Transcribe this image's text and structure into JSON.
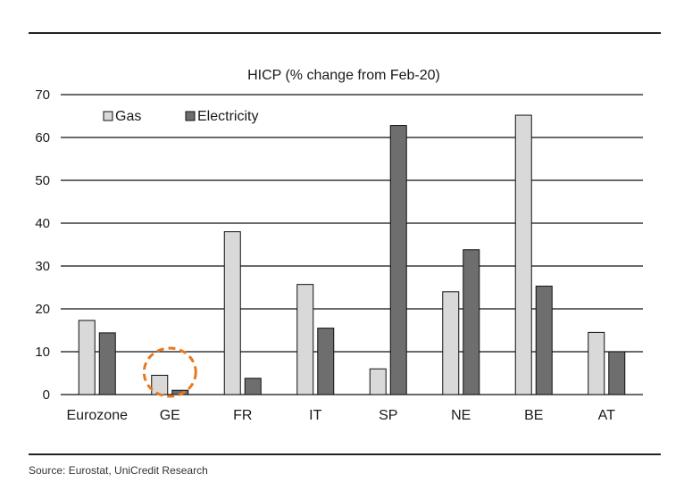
{
  "source": "Source: Eurostat, UniCredit Research",
  "chart_data": {
    "type": "bar",
    "title": "HICP (% change from Feb-20)",
    "xlabel": "",
    "ylabel": "",
    "ylim": [
      0,
      70
    ],
    "yticks": [
      0,
      10,
      20,
      30,
      40,
      50,
      60,
      70
    ],
    "grid": true,
    "legend_position": "top-left",
    "categories": [
      "Eurozone",
      "GE",
      "FR",
      "IT",
      "SP",
      "NE",
      "BE",
      "AT"
    ],
    "series": [
      {
        "name": "Gas",
        "color": "#d9d9d9",
        "values": [
          17.3,
          4.5,
          38.0,
          25.7,
          6.0,
          24.0,
          65.2,
          14.5
        ]
      },
      {
        "name": "Electricity",
        "color": "#6e6e6e",
        "values": [
          14.4,
          1.0,
          3.8,
          15.5,
          62.8,
          33.8,
          25.3,
          10.0
        ]
      }
    ],
    "highlight_category": "GE",
    "highlight_color": "#e8781e"
  }
}
